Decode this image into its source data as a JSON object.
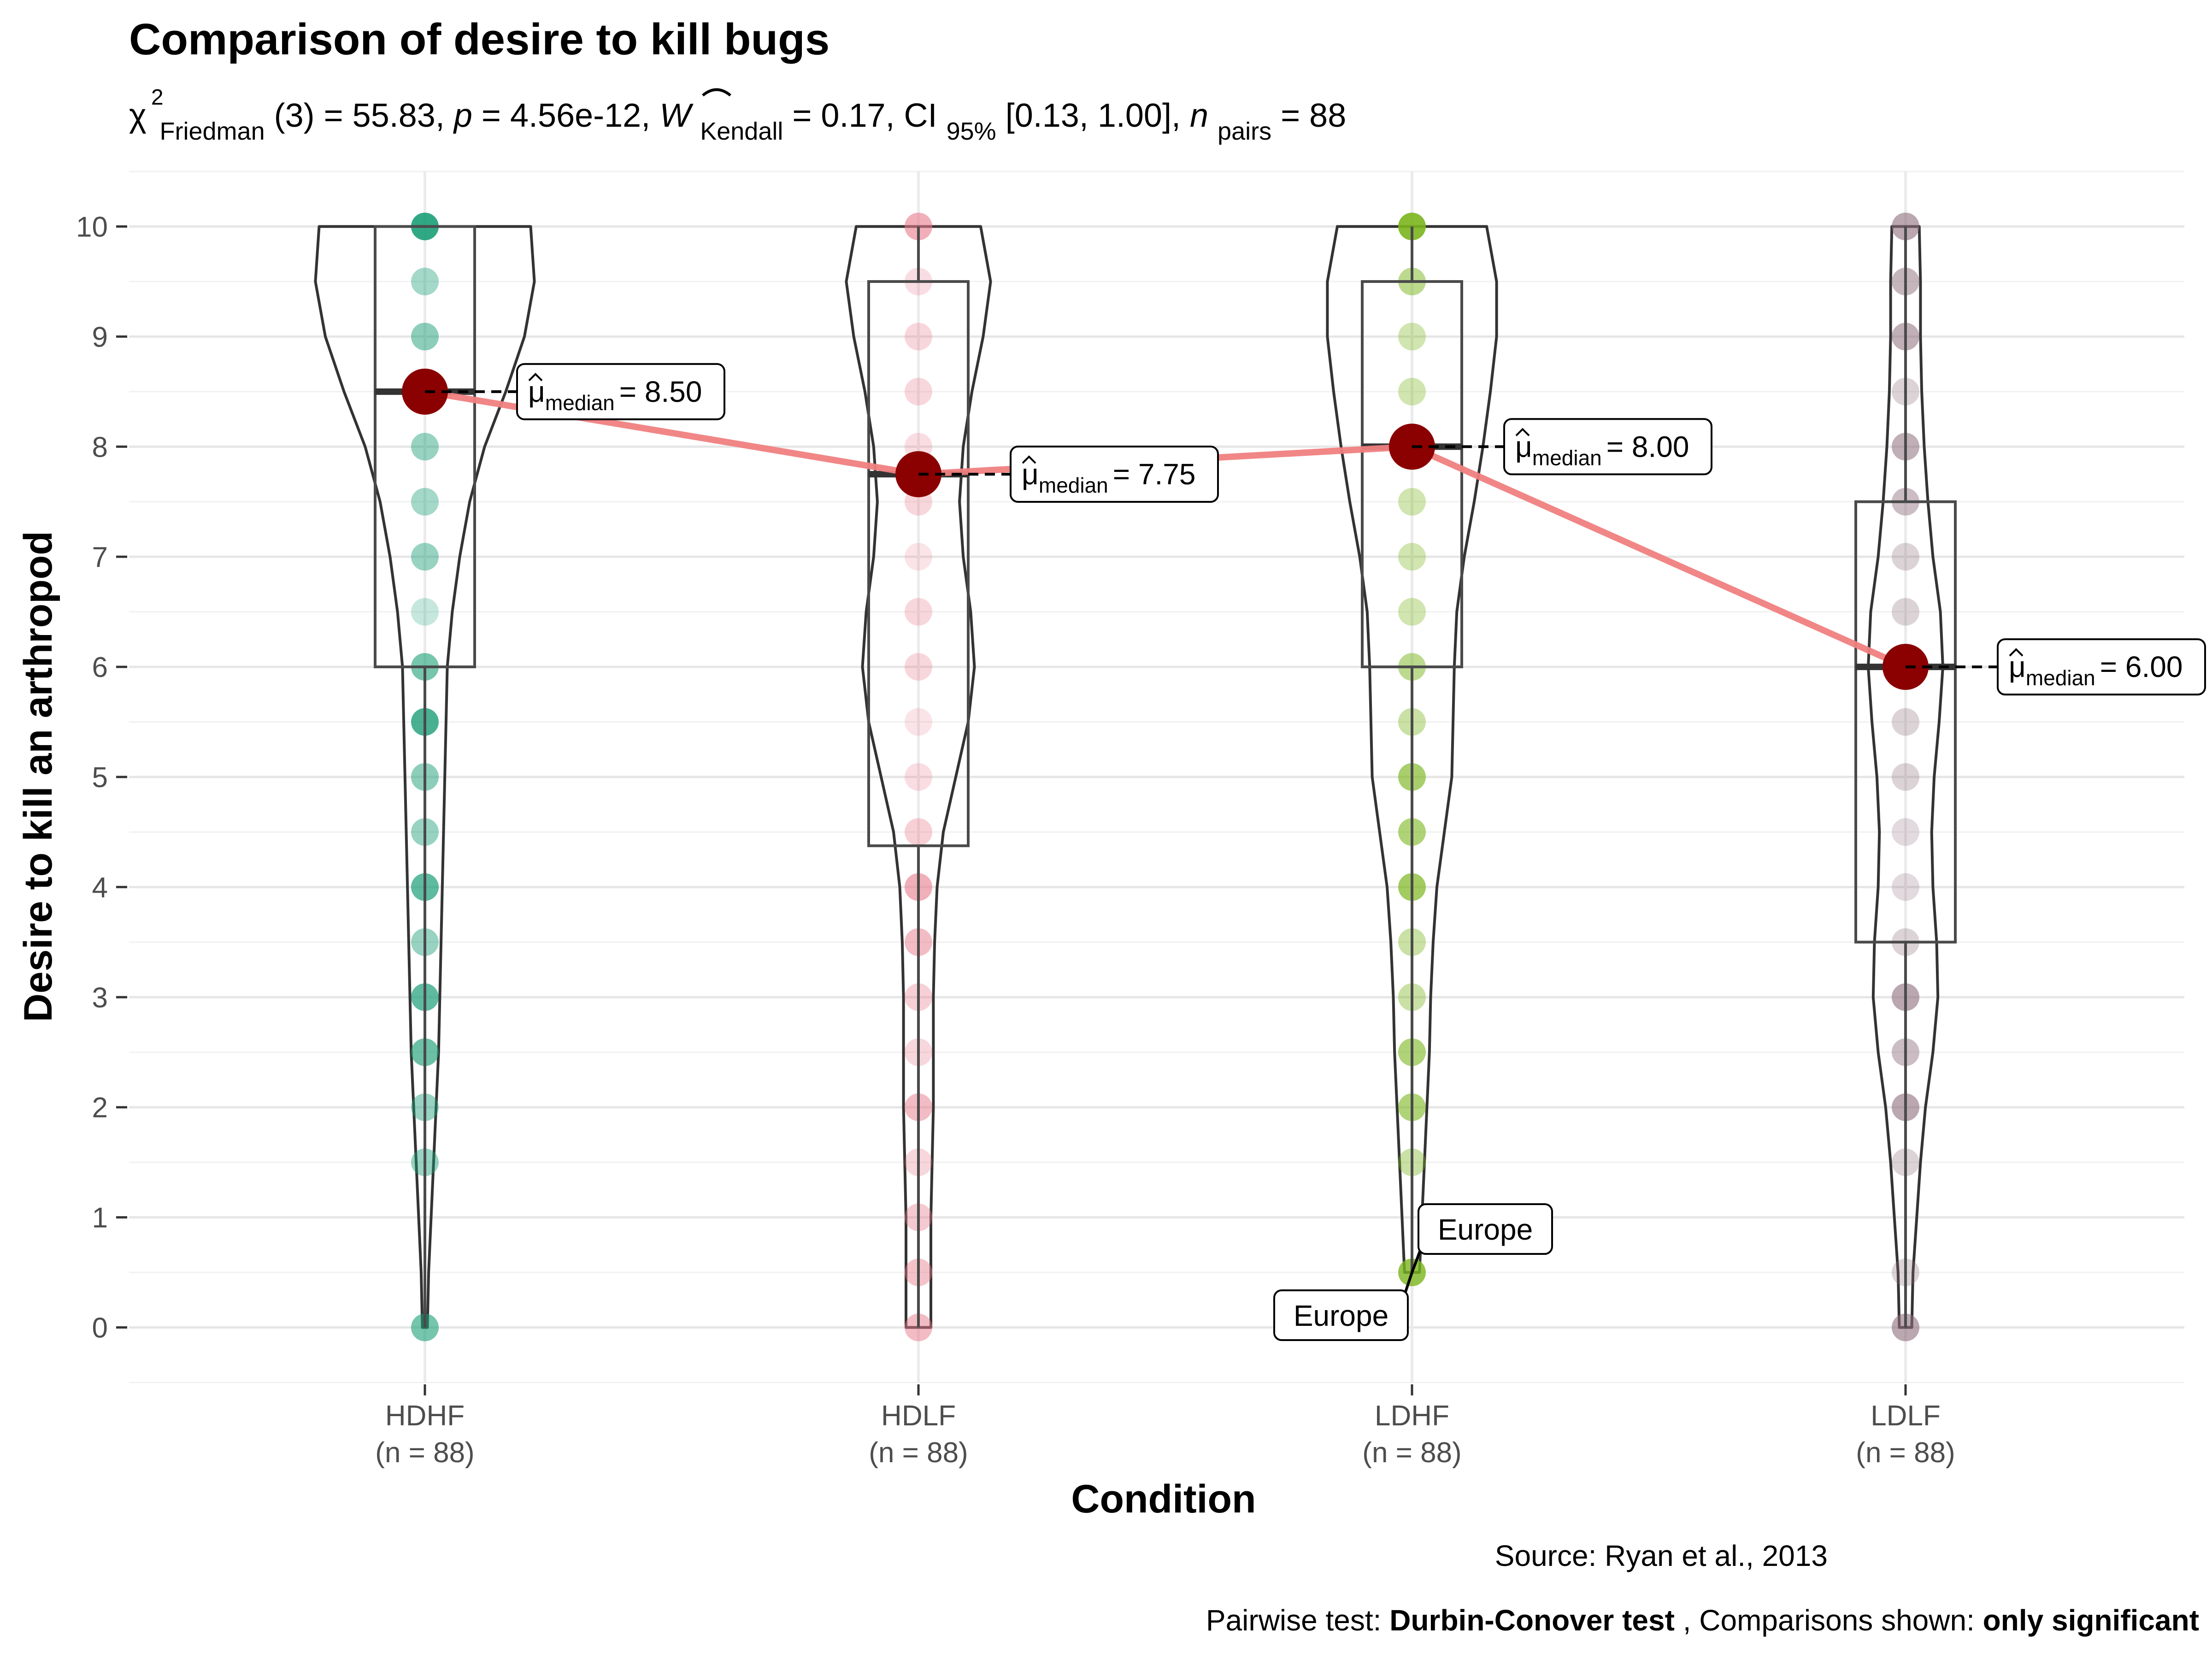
{
  "chart_data": {
    "type": "violin-box",
    "title": "Comparison of desire to kill bugs",
    "subtitle": {
      "chi": "χ",
      "chi_sup": "2",
      "chi_sub": "Friedman",
      "df": "(3) = 55.83, ",
      "p_label": "p",
      "p_value": " = 4.56e-12, ",
      "w_label": "W",
      "w_sub": "Kendall",
      "w_value": " = 0.17, CI",
      "ci_sub": "95%",
      "ci_value": " [0.13, 1.00], ",
      "n_label": "n",
      "n_sub": "pairs",
      "n_value": " = 88"
    },
    "xlabel": "Condition",
    "ylabel": "Desire to kill an arthropod",
    "ylim": [
      -0.5,
      10.5
    ],
    "yticks": [
      0,
      1,
      2,
      3,
      4,
      5,
      6,
      7,
      8,
      9,
      10
    ],
    "categories": [
      "HDHF",
      "HDLF",
      "LDHF",
      "LDLF"
    ],
    "n_labels": [
      "(n = 88)",
      "(n = 88)",
      "(n = 88)",
      "(n = 88)"
    ],
    "colors": [
      "#1B9E77",
      "#E7798A",
      "#7AB51D",
      "#8C6D7A"
    ],
    "median_color": "#8B0000",
    "path_color": "#F08080",
    "medians": [
      8.5,
      7.75,
      8.0,
      6.0
    ],
    "median_labels": [
      "= 8.50",
      "= 7.75",
      "= 8.00",
      "= 6.00"
    ],
    "median_symbol": "μ",
    "median_sub": "median",
    "boxes": [
      {
        "q1": 6.0,
        "median": 8.5,
        "q3": 10.0,
        "min": 0,
        "max": 10
      },
      {
        "q1": 4.375,
        "median": 7.75,
        "q3": 9.5,
        "min": 0,
        "max": 10
      },
      {
        "q1": 6.0,
        "median": 8.0,
        "q3": 9.5,
        "min": 0.5,
        "max": 10
      },
      {
        "q1": 3.5,
        "median": 6.0,
        "q3": 7.5,
        "min": 0,
        "max": 10
      }
    ],
    "points": [
      [
        {
          "y": 10,
          "a": 0.9
        },
        {
          "y": 9.5,
          "a": 0.4
        },
        {
          "y": 9,
          "a": 0.5
        },
        {
          "y": 8.5,
          "a": 0.6
        },
        {
          "y": 8,
          "a": 0.45
        },
        {
          "y": 7.5,
          "a": 0.4
        },
        {
          "y": 7,
          "a": 0.45
        },
        {
          "y": 6.5,
          "a": 0.25
        },
        {
          "y": 6,
          "a": 0.6
        },
        {
          "y": 5.5,
          "a": 0.8
        },
        {
          "y": 5,
          "a": 0.5
        },
        {
          "y": 4.5,
          "a": 0.45
        },
        {
          "y": 4,
          "a": 0.7
        },
        {
          "y": 3.5,
          "a": 0.45
        },
        {
          "y": 3,
          "a": 0.7
        },
        {
          "y": 2.5,
          "a": 0.65
        },
        {
          "y": 2,
          "a": 0.45
        },
        {
          "y": 1.5,
          "a": 0.45
        },
        {
          "y": 0,
          "a": 0.6
        }
      ],
      [
        {
          "y": 10,
          "a": 0.6
        },
        {
          "y": 9.5,
          "a": 0.25
        },
        {
          "y": 9,
          "a": 0.3
        },
        {
          "y": 8.5,
          "a": 0.3
        },
        {
          "y": 8,
          "a": 0.25
        },
        {
          "y": 7.5,
          "a": 0.3
        },
        {
          "y": 7,
          "a": 0.2
        },
        {
          "y": 6.5,
          "a": 0.3
        },
        {
          "y": 6,
          "a": 0.3
        },
        {
          "y": 5.5,
          "a": 0.2
        },
        {
          "y": 5,
          "a": 0.25
        },
        {
          "y": 4.5,
          "a": 0.35
        },
        {
          "y": 4,
          "a": 0.6
        },
        {
          "y": 3.5,
          "a": 0.5
        },
        {
          "y": 3,
          "a": 0.35
        },
        {
          "y": 2.5,
          "a": 0.3
        },
        {
          "y": 2,
          "a": 0.5
        },
        {
          "y": 1.5,
          "a": 0.3
        },
        {
          "y": 1,
          "a": 0.4
        },
        {
          "y": 0.5,
          "a": 0.45
        },
        {
          "y": 0,
          "a": 0.5
        }
      ],
      [
        {
          "y": 10,
          "a": 0.9
        },
        {
          "y": 9.5,
          "a": 0.5
        },
        {
          "y": 9,
          "a": 0.35
        },
        {
          "y": 8.5,
          "a": 0.35
        },
        {
          "y": 8,
          "a": 0.35
        },
        {
          "y": 7.5,
          "a": 0.35
        },
        {
          "y": 7,
          "a": 0.35
        },
        {
          "y": 6.5,
          "a": 0.35
        },
        {
          "y": 6,
          "a": 0.5
        },
        {
          "y": 5.5,
          "a": 0.4
        },
        {
          "y": 5,
          "a": 0.65
        },
        {
          "y": 4.5,
          "a": 0.6
        },
        {
          "y": 4,
          "a": 0.7
        },
        {
          "y": 3.5,
          "a": 0.4
        },
        {
          "y": 3,
          "a": 0.4
        },
        {
          "y": 2.5,
          "a": 0.6
        },
        {
          "y": 2,
          "a": 0.6
        },
        {
          "y": 1.5,
          "a": 0.4
        },
        {
          "y": 0.5,
          "a": 0.8
        }
      ],
      [
        {
          "y": 10,
          "a": 0.6
        },
        {
          "y": 9.5,
          "a": 0.5
        },
        {
          "y": 9,
          "a": 0.55
        },
        {
          "y": 8.5,
          "a": 0.3
        },
        {
          "y": 8,
          "a": 0.55
        },
        {
          "y": 7.5,
          "a": 0.45
        },
        {
          "y": 7,
          "a": 0.3
        },
        {
          "y": 6.5,
          "a": 0.3
        },
        {
          "y": 6,
          "a": 0.3
        },
        {
          "y": 5.5,
          "a": 0.3
        },
        {
          "y": 5,
          "a": 0.3
        },
        {
          "y": 4.5,
          "a": 0.25
        },
        {
          "y": 4,
          "a": 0.25
        },
        {
          "y": 3.5,
          "a": 0.3
        },
        {
          "y": 3,
          "a": 0.6
        },
        {
          "y": 2.5,
          "a": 0.45
        },
        {
          "y": 2,
          "a": 0.6
        },
        {
          "y": 1.5,
          "a": 0.3
        },
        {
          "y": 0.5,
          "a": 0.3
        },
        {
          "y": 0,
          "a": 0.6
        }
      ]
    ],
    "violins": [
      [
        [
          0,
          0.02
        ],
        [
          0.5,
          0.03
        ],
        [
          1,
          0.05
        ],
        [
          1.5,
          0.07
        ],
        [
          2,
          0.09
        ],
        [
          2.5,
          0.11
        ],
        [
          3,
          0.12
        ],
        [
          3.5,
          0.13
        ],
        [
          4,
          0.14
        ],
        [
          4.5,
          0.15
        ],
        [
          5,
          0.16
        ],
        [
          5.5,
          0.17
        ],
        [
          6,
          0.18
        ],
        [
          6.5,
          0.22
        ],
        [
          7,
          0.28
        ],
        [
          7.5,
          0.36
        ],
        [
          8,
          0.48
        ],
        [
          8.5,
          0.65
        ],
        [
          9,
          0.8
        ],
        [
          9.5,
          0.88
        ],
        [
          10,
          0.85
        ]
      ],
      [
        [
          0,
          0.1
        ],
        [
          0.5,
          0.1
        ],
        [
          1,
          0.1
        ],
        [
          1.5,
          0.11
        ],
        [
          2,
          0.12
        ],
        [
          2.5,
          0.12
        ],
        [
          3,
          0.12
        ],
        [
          3.5,
          0.13
        ],
        [
          4,
          0.15
        ],
        [
          4.5,
          0.2
        ],
        [
          5,
          0.3
        ],
        [
          5.5,
          0.4
        ],
        [
          6,
          0.45
        ],
        [
          6.5,
          0.42
        ],
        [
          7,
          0.36
        ],
        [
          7.5,
          0.33
        ],
        [
          8,
          0.36
        ],
        [
          8.5,
          0.43
        ],
        [
          9,
          0.52
        ],
        [
          9.5,
          0.58
        ],
        [
          10,
          0.5
        ]
      ],
      [
        [
          0.5,
          0.06
        ],
        [
          1,
          0.08
        ],
        [
          1.5,
          0.1
        ],
        [
          2,
          0.12
        ],
        [
          2.5,
          0.14
        ],
        [
          3,
          0.15
        ],
        [
          3.5,
          0.17
        ],
        [
          4,
          0.2
        ],
        [
          4.5,
          0.26
        ],
        [
          5,
          0.32
        ],
        [
          5.5,
          0.33
        ],
        [
          6,
          0.34
        ],
        [
          6.5,
          0.36
        ],
        [
          7,
          0.42
        ],
        [
          7.5,
          0.5
        ],
        [
          8,
          0.57
        ],
        [
          8.5,
          0.63
        ],
        [
          9,
          0.68
        ],
        [
          9.5,
          0.68
        ],
        [
          10,
          0.6
        ]
      ],
      [
        [
          0,
          0.05
        ],
        [
          0.5,
          0.06
        ],
        [
          1,
          0.09
        ],
        [
          1.5,
          0.12
        ],
        [
          2,
          0.16
        ],
        [
          2.5,
          0.22
        ],
        [
          3,
          0.26
        ],
        [
          3.5,
          0.25
        ],
        [
          4,
          0.22
        ],
        [
          4.5,
          0.21
        ],
        [
          5,
          0.23
        ],
        [
          5.5,
          0.27
        ],
        [
          6,
          0.3
        ],
        [
          6.5,
          0.28
        ],
        [
          7,
          0.22
        ],
        [
          7.5,
          0.18
        ],
        [
          8,
          0.15
        ],
        [
          8.5,
          0.13
        ],
        [
          9,
          0.12
        ],
        [
          9.5,
          0.12
        ],
        [
          10,
          0.11
        ]
      ]
    ],
    "outlier_labels": [
      "Europe",
      "Europe"
    ],
    "caption": "Source: Ryan et al., 2013",
    "pairwise": {
      "prefix": "Pairwise test: ",
      "test": "Durbin-Conover test",
      "middle": ", Comparisons shown: ",
      "shown": "only significant"
    }
  }
}
